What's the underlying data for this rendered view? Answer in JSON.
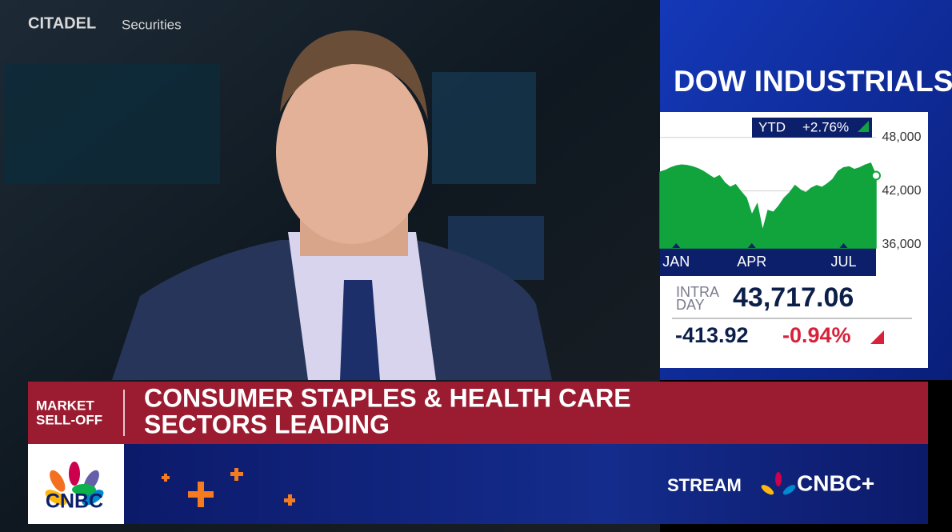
{
  "background_signs": [
    "CITADEL",
    "Securities"
  ],
  "panel": {
    "title": "DOW INDUSTRIALS",
    "ytd_label": "YTD",
    "ytd_change": "+2.76%",
    "intraday_label": [
      "INTRA",
      "DAY"
    ],
    "price": "43,717.06",
    "change": "-413.92",
    "change_pct": "-0.94%"
  },
  "chart_data": {
    "type": "area",
    "categories": [
      null,
      null,
      null,
      "JAN",
      null,
      null,
      null,
      null,
      null,
      null,
      null,
      null,
      null,
      null,
      null,
      null,
      null,
      "APR",
      null,
      null,
      null,
      null,
      null,
      null,
      null,
      null,
      null,
      null,
      null,
      null,
      null,
      null,
      null,
      null,
      "JUL",
      null,
      null,
      null,
      null,
      null,
      null
    ],
    "series": [
      {
        "color": "#11a43c",
        "values": [
          44100,
          44300,
          44600,
          44800,
          44900,
          44850,
          44700,
          44500,
          44200,
          43800,
          43400,
          43700,
          42900,
          42400,
          42700,
          41900,
          41200,
          39300,
          40500,
          37500,
          39800,
          39600,
          40300,
          41200,
          41800,
          42600,
          42100,
          41800,
          42300,
          42600,
          42400,
          42800,
          43300,
          44200,
          44600,
          44700,
          44400,
          44600,
          44900,
          45100,
          43717
        ]
      }
    ],
    "ylim": [
      35600,
      50400
    ],
    "yticks": [
      {
        "value": 36000,
        "label": "36,000"
      },
      {
        "value": 42000,
        "label": "42,000"
      },
      {
        "value": 48000,
        "label": "48,000"
      }
    ],
    "grid": true
  },
  "banner": {
    "tag": [
      "MARKET",
      "SELL-OFF"
    ],
    "headline": [
      "CONSUMER STAPLES & HEALTH CARE",
      "SECTORS LEADING"
    ]
  },
  "footer": {
    "logo": "CNBC",
    "stream": "STREAM",
    "brand": "CNBC+"
  }
}
